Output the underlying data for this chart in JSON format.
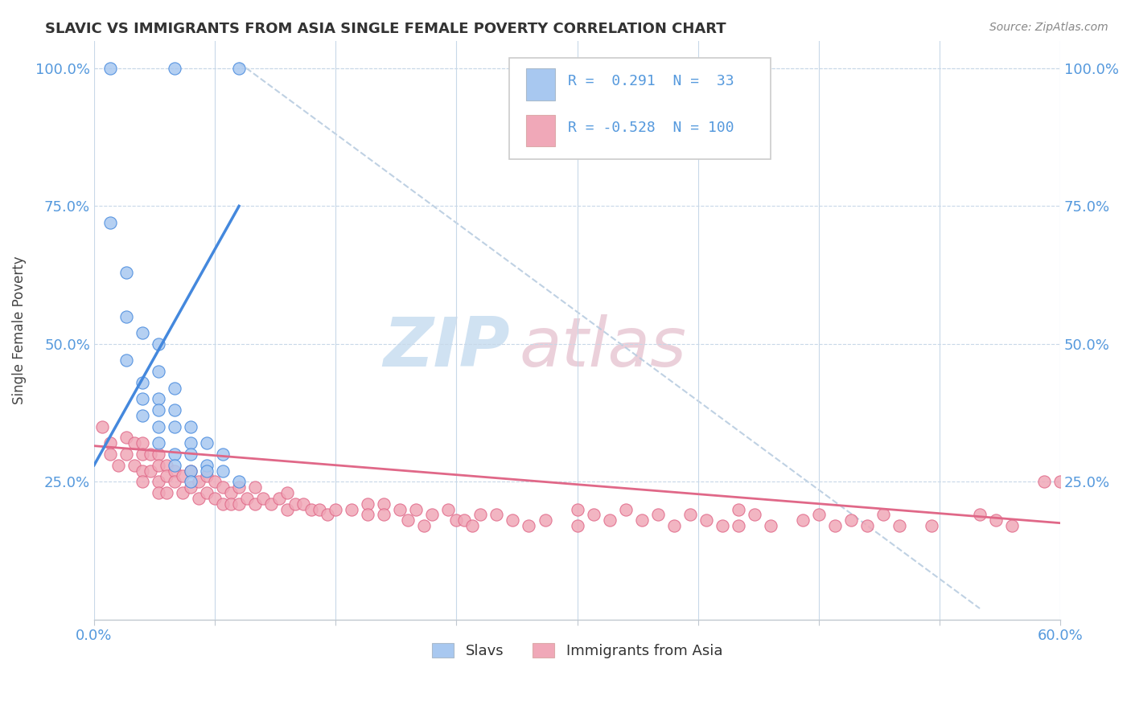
{
  "title": "SLAVIC VS IMMIGRANTS FROM ASIA SINGLE FEMALE POVERTY CORRELATION CHART",
  "source": "Source: ZipAtlas.com",
  "ylabel": "Single Female Poverty",
  "xlim": [
    0.0,
    0.6
  ],
  "ylim": [
    0.0,
    1.05
  ],
  "yticks": [
    0.25,
    0.5,
    0.75,
    1.0
  ],
  "ytick_labels": [
    "25.0%",
    "50.0%",
    "75.0%",
    "100.0%"
  ],
  "xtick_positions": [
    0.0,
    0.075,
    0.15,
    0.225,
    0.3,
    0.375,
    0.45,
    0.525,
    0.6
  ],
  "legend_r_slavs": "0.291",
  "legend_n_slavs": "33",
  "legend_r_asia": "-0.528",
  "legend_n_asia": "100",
  "slavs_color": "#a8c8f0",
  "asia_color": "#f0a8b8",
  "slavs_line_color": "#4488dd",
  "asia_line_color": "#e06888",
  "diagonal_color": "#b8cce0",
  "background_color": "#ffffff",
  "tick_color": "#5599dd",
  "slavs_x": [
    0.01,
    0.05,
    0.09,
    0.01,
    0.02,
    0.02,
    0.02,
    0.03,
    0.03,
    0.03,
    0.03,
    0.04,
    0.04,
    0.04,
    0.04,
    0.04,
    0.04,
    0.05,
    0.05,
    0.05,
    0.05,
    0.05,
    0.06,
    0.06,
    0.06,
    0.06,
    0.06,
    0.07,
    0.07,
    0.07,
    0.08,
    0.08,
    0.09
  ],
  "slavs_y": [
    1.0,
    1.0,
    1.0,
    0.72,
    0.63,
    0.55,
    0.47,
    0.52,
    0.43,
    0.4,
    0.37,
    0.5,
    0.45,
    0.4,
    0.38,
    0.35,
    0.32,
    0.42,
    0.38,
    0.35,
    0.3,
    0.28,
    0.35,
    0.32,
    0.3,
    0.27,
    0.25,
    0.32,
    0.28,
    0.27,
    0.3,
    0.27,
    0.25
  ],
  "asia_x": [
    0.005,
    0.01,
    0.01,
    0.015,
    0.02,
    0.02,
    0.025,
    0.025,
    0.03,
    0.03,
    0.03,
    0.03,
    0.035,
    0.035,
    0.04,
    0.04,
    0.04,
    0.04,
    0.045,
    0.045,
    0.045,
    0.05,
    0.05,
    0.055,
    0.055,
    0.06,
    0.06,
    0.065,
    0.065,
    0.07,
    0.07,
    0.075,
    0.075,
    0.08,
    0.08,
    0.085,
    0.085,
    0.09,
    0.09,
    0.095,
    0.1,
    0.1,
    0.105,
    0.11,
    0.115,
    0.12,
    0.12,
    0.125,
    0.13,
    0.135,
    0.14,
    0.145,
    0.15,
    0.16,
    0.17,
    0.17,
    0.18,
    0.18,
    0.19,
    0.195,
    0.2,
    0.205,
    0.21,
    0.22,
    0.225,
    0.23,
    0.235,
    0.24,
    0.25,
    0.26,
    0.27,
    0.28,
    0.3,
    0.3,
    0.31,
    0.32,
    0.33,
    0.34,
    0.35,
    0.36,
    0.37,
    0.38,
    0.39,
    0.4,
    0.4,
    0.41,
    0.42,
    0.44,
    0.45,
    0.46,
    0.47,
    0.48,
    0.49,
    0.5,
    0.52,
    0.55,
    0.56,
    0.57,
    0.59,
    0.6
  ],
  "asia_y": [
    0.35,
    0.32,
    0.3,
    0.28,
    0.33,
    0.3,
    0.32,
    0.28,
    0.32,
    0.3,
    0.27,
    0.25,
    0.3,
    0.27,
    0.3,
    0.28,
    0.25,
    0.23,
    0.28,
    0.26,
    0.23,
    0.27,
    0.25,
    0.26,
    0.23,
    0.27,
    0.24,
    0.25,
    0.22,
    0.26,
    0.23,
    0.25,
    0.22,
    0.24,
    0.21,
    0.23,
    0.21,
    0.24,
    0.21,
    0.22,
    0.24,
    0.21,
    0.22,
    0.21,
    0.22,
    0.23,
    0.2,
    0.21,
    0.21,
    0.2,
    0.2,
    0.19,
    0.2,
    0.2,
    0.21,
    0.19,
    0.21,
    0.19,
    0.2,
    0.18,
    0.2,
    0.17,
    0.19,
    0.2,
    0.18,
    0.18,
    0.17,
    0.19,
    0.19,
    0.18,
    0.17,
    0.18,
    0.2,
    0.17,
    0.19,
    0.18,
    0.2,
    0.18,
    0.19,
    0.17,
    0.19,
    0.18,
    0.17,
    0.2,
    0.17,
    0.19,
    0.17,
    0.18,
    0.19,
    0.17,
    0.18,
    0.17,
    0.19,
    0.17,
    0.17,
    0.19,
    0.18,
    0.17,
    0.25,
    0.25
  ]
}
